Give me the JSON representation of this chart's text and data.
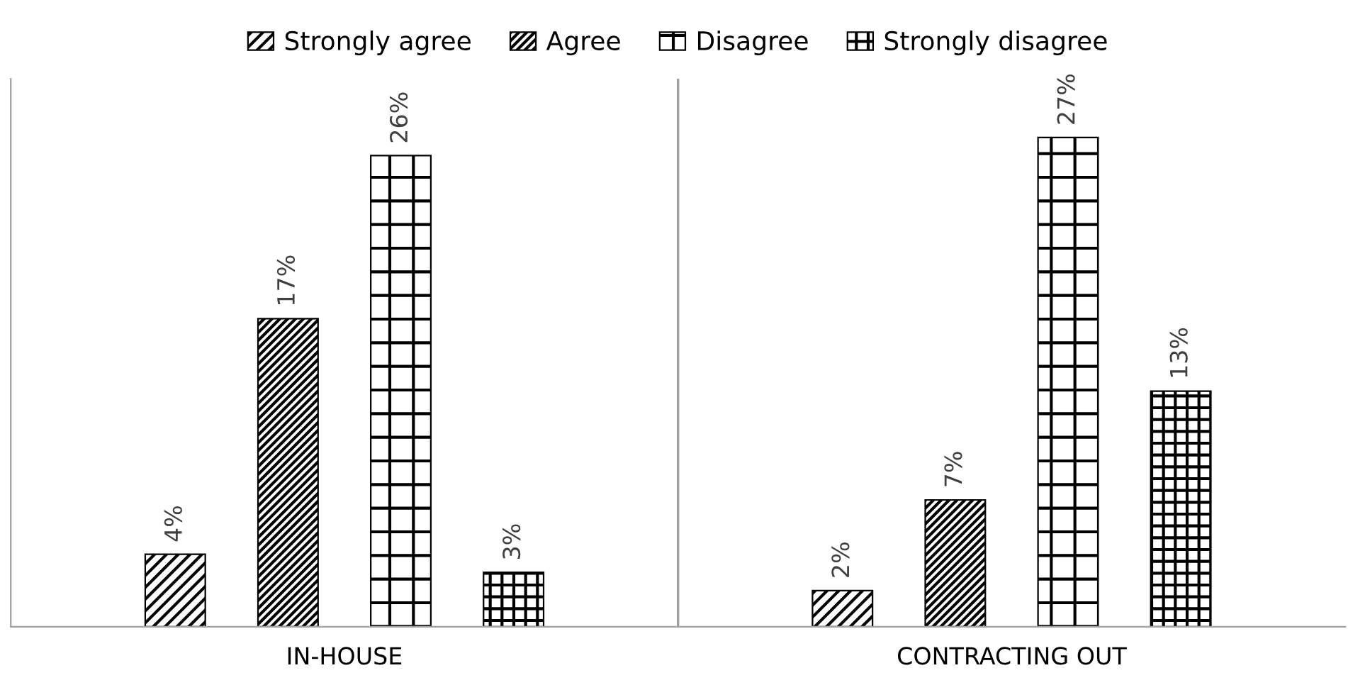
{
  "chart_data": {
    "type": "bar",
    "categories": [
      "IN-HOUSE",
      "CONTRACTING OUT"
    ],
    "series": [
      {
        "name": "Strongly agree",
        "color": "#000000",
        "values": [
          4,
          2
        ],
        "value_labels": [
          "4%",
          "2%"
        ]
      },
      {
        "name": "Agree",
        "color": "#000000",
        "values": [
          17,
          7
        ],
        "value_labels": [
          "17%",
          "7%"
        ]
      },
      {
        "name": "Disagree",
        "color": "#000000",
        "values": [
          26,
          27
        ],
        "value_labels": [
          "26%",
          "27%"
        ]
      },
      {
        "name": "Strongly disagree",
        "color": "#000000",
        "values": [
          3,
          13
        ],
        "value_labels": [
          "3%",
          "13%"
        ]
      }
    ],
    "legend": "top",
    "grid": false
  }
}
